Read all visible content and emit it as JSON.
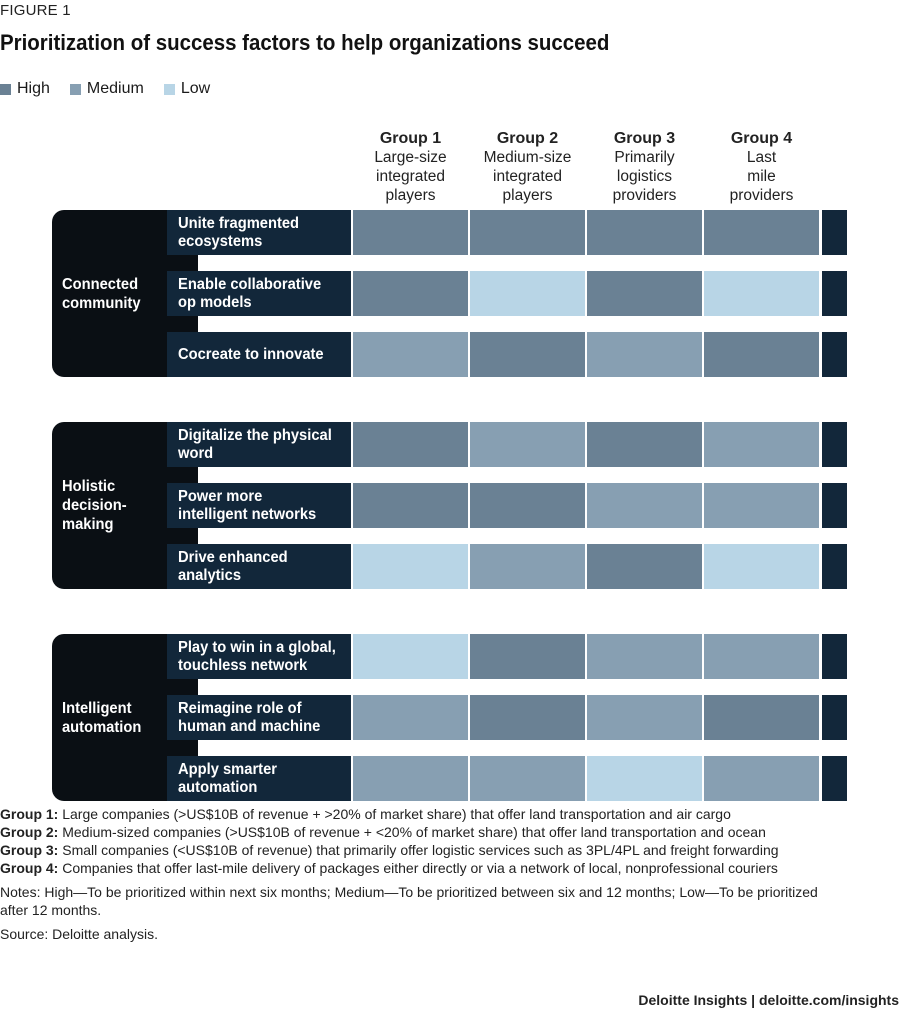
{
  "figure_label": "FIGURE 1",
  "title": "Prioritization of success factors to help organizations succeed",
  "colors": {
    "High": "#6a8194",
    "Medium": "#879fb2",
    "Low": "#b8d5e6",
    "dark": "#12273a",
    "black": "#0a0f14"
  },
  "chart_data": {
    "type": "table",
    "title": "Prioritization of success factors to help organizations succeed",
    "legend": [
      "High",
      "Medium",
      "Low"
    ],
    "groups": [
      {
        "name": "Group 1",
        "desc": [
          "Large-size",
          "integrated",
          "players"
        ]
      },
      {
        "name": "Group 2",
        "desc": [
          "Medium-size",
          "integrated",
          "players"
        ]
      },
      {
        "name": "Group 3",
        "desc": [
          "Primarily",
          "logistics",
          "providers"
        ]
      },
      {
        "name": "Group 4",
        "desc": [
          "Last",
          "mile",
          "providers"
        ]
      }
    ],
    "categories": [
      {
        "name": [
          "Connected",
          "community"
        ],
        "factors": [
          {
            "label": [
              "Unite fragmented",
              "ecosystems"
            ],
            "values": [
              "High",
              "High",
              "High",
              "High"
            ]
          },
          {
            "label": [
              "Enable collaborative",
              "op models"
            ],
            "values": [
              "High",
              "Low",
              "High",
              "Low"
            ]
          },
          {
            "label": [
              "Cocreate to innovate"
            ],
            "values": [
              "Medium",
              "High",
              "Medium",
              "High"
            ]
          }
        ]
      },
      {
        "name": [
          "Holistic",
          "decision-",
          "making"
        ],
        "factors": [
          {
            "label": [
              "Digitalize the physical",
              "word"
            ],
            "values": [
              "High",
              "Medium",
              "High",
              "Medium"
            ]
          },
          {
            "label": [
              "Power more",
              "intelligent networks"
            ],
            "values": [
              "High",
              "High",
              "Medium",
              "Medium"
            ]
          },
          {
            "label": [
              "Drive enhanced",
              "analytics"
            ],
            "values": [
              "Low",
              "Medium",
              "High",
              "Low"
            ]
          }
        ]
      },
      {
        "name": [
          "Intelligent",
          "automation"
        ],
        "factors": [
          {
            "label": [
              "Play to win in a global,",
              "touchless network"
            ],
            "values": [
              "Low",
              "High",
              "Medium",
              "Medium"
            ]
          },
          {
            "label": [
              "Reimagine role of",
              "human and machine"
            ],
            "values": [
              "Medium",
              "High",
              "Medium",
              "High"
            ]
          },
          {
            "label": [
              "Apply smarter",
              "automation"
            ],
            "values": [
              "Medium",
              "Medium",
              "Low",
              "Medium"
            ]
          }
        ]
      }
    ]
  },
  "notes": {
    "groups": [
      {
        "key": "Group 1:",
        "text": " Large companies (>US$10B of revenue + >20% of market share) that offer land transportation and air cargo"
      },
      {
        "key": "Group 2:",
        "text": " Medium-sized companies (>US$10B of revenue + <20% of market share) that offer land transportation and ocean"
      },
      {
        "key": "Group 3:",
        "text": " Small companies (<US$10B of revenue) that primarily offer logistic services such as 3PL/4PL and freight forwarding"
      },
      {
        "key": "Group 4:",
        "text": " Companies that offer last-mile delivery of packages either directly or via a network of local, nonprofessional couriers"
      }
    ],
    "notes_text": "Notes: High—To be prioritized within next six months; Medium—To be prioritized between six and 12 months; Low—To be prioritized after 12 months.",
    "source": "Source: Deloitte analysis."
  },
  "footer": "Deloitte Insights | deloitte.com/insights"
}
